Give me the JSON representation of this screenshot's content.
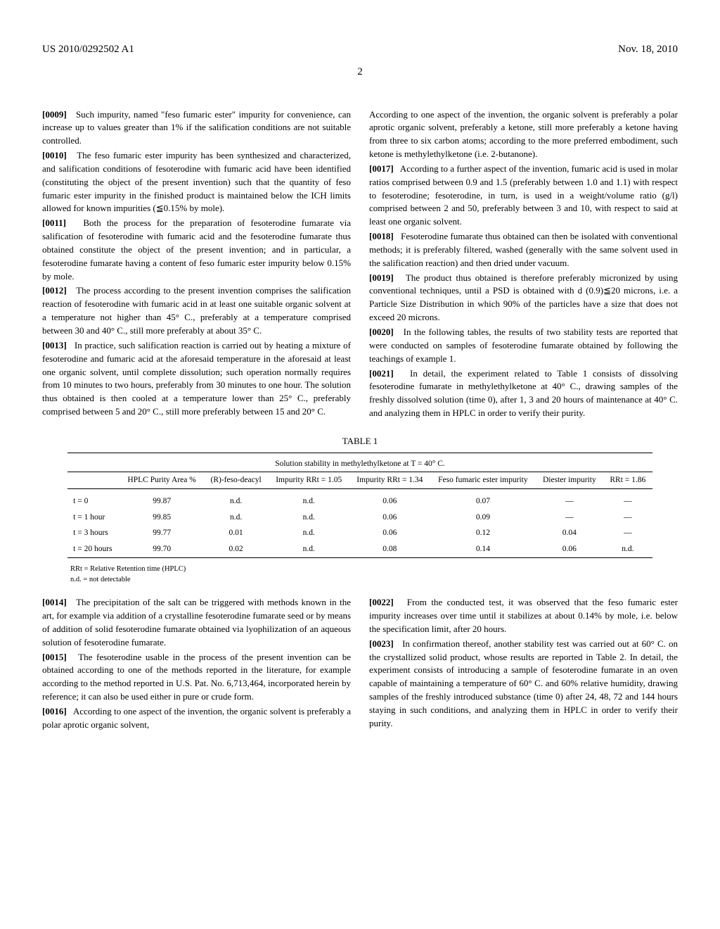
{
  "header": {
    "left": "US 2010/0292502 A1",
    "right": "Nov. 18, 2010",
    "page_number": "2"
  },
  "paragraphs": {
    "p0009": "Such impurity, named \"feso fumaric ester\" impurity for convenience, can increase up to values greater than 1% if the salification conditions are not suitable controlled.",
    "p0010": "The feso fumaric ester impurity has been synthesized and characterized, and salification conditions of fesoterodine with fumaric acid have been identified (constituting the object of the present invention) such that the quantity of feso fumaric ester impurity in the finished product is maintained below the ICH limits allowed for known impurities (≦0.15% by mole).",
    "p0011": "Both the process for the preparation of fesoterodine fumarate via salification of fesoterodine with fumaric acid and the fesoterodine fumarate thus obtained constitute the object of the present invention; and in particular, a fesoterodine fumarate having a content of feso fumaric ester impurity below 0.15% by mole.",
    "p0012": "The process according to the present invention comprises the salification reaction of fesoterodine with fumaric acid in at least one suitable organic solvent at a temperature not higher than 45° C., preferably at a temperature comprised between 30 and 40° C., still more preferably at about 35° C.",
    "p0013": "In practice, such salification reaction is carried out by heating a mixture of fesoterodine and fumaric acid at the aforesaid temperature in the aforesaid at least one organic solvent, until complete dissolution; such operation normally requires from 10 minutes to two hours, preferably from 30 minutes to one hour. The solution thus obtained is then cooled at a temperature lower than 25° C., preferably comprised between 5 and 20° C., still more preferably between 15 and 20° C.",
    "p0014": "The precipitation of the salt can be triggered with methods known in the art, for example via addition of a crystalline fesoterodine fumarate seed or by means of addition of solid fesoterodine fumarate obtained via lyophilization of an aqueous solution of fesoterodine fumarate.",
    "p0015": "The fesoterodine usable in the process of the present invention can be obtained according to one of the methods reported in the literature, for example according to the method reported in U.S. Pat. No. 6,713,464, incorporated herein by reference; it can also be used either in pure or crude form.",
    "p0016": "According to one aspect of the invention, the organic solvent is preferably a polar aprotic organic solvent, preferably a ketone, still more preferably a ketone having from three to six carbon atoms; according to the more preferred embodiment, such ketone is methylethylketone (i.e. 2-butanone).",
    "p0017": "According to a further aspect of the invention, fumaric acid is used in molar ratios comprised between 0.9 and 1.5 (preferably between 1.0 and 1.1) with respect to fesoterodine; fesoterodine, in turn, is used in a weight/volume ratio (g/l) comprised between 2 and 50, preferably between 3 and 10, with respect to said at least one organic solvent.",
    "p0018": "Fesoterodine fumarate thus obtained can then be isolated with conventional methods; it is preferably filtered, washed (generally with the same solvent used in the salification reaction) and then dried under vacuum.",
    "p0019": "The product thus obtained is therefore preferably micronized by using conventional techniques, until a PSD is obtained with d (0.9)≦20 microns, i.e. a Particle Size Distribution in which 90% of the particles have a size that does not exceed 20 microns.",
    "p0020": "In the following tables, the results of two stability tests are reported that were conducted on samples of fesoterodine fumarate obtained by following the teachings of example 1.",
    "p0021": "In detail, the experiment related to Table 1 consists of dissolving fesoterodine fumarate in methylethylketone at 40° C., drawing samples of the freshly dissolved solution (time 0), after 1, 3 and 20 hours of maintenance at 40° C. and analyzing them in HPLC in order to verify their purity.",
    "p0022": "From the conducted test, it was observed that the feso fumaric ester impurity increases over time until it stabilizes at about 0.14% by mole, i.e. below the specification limit, after 20 hours.",
    "p0023": "In confirmation thereof, another stability test was carried out at 60° C. on the crystallized solid product, whose results are reported in Table 2. In detail, the experiment consists of introducing a sample of fesoterodine fumarate in an oven capable of maintaining a temperature of 60° C. and 60% relative humidity, drawing samples of the freshly introduced substance (time 0) after 24, 48, 72 and 144 hours staying in such conditions, and analyzing them in HPLC in order to verify their purity."
  },
  "labels": {
    "p0009": "[0009]",
    "p0010": "[0010]",
    "p0011": "[0011]",
    "p0012": "[0012]",
    "p0013": "[0013]",
    "p0014": "[0014]",
    "p0015": "[0015]",
    "p0016": "[0016]",
    "p0017": "[0017]",
    "p0018": "[0018]",
    "p0019": "[0019]",
    "p0020": "[0020]",
    "p0021": "[0021]",
    "p0022": "[0022]",
    "p0023": "[0023]"
  },
  "table1": {
    "caption": "TABLE 1",
    "title": "Solution stability in methylethylketone at T = 40° C.",
    "columns": [
      "",
      "HPLC Purity Area %",
      "(R)-feso-deacyl",
      "Impurity RRt = 1.05",
      "Impurity RRt = 1.34",
      "Feso fumaric ester impurity",
      "Diester impurity",
      "RRt = 1.86"
    ],
    "rows": [
      [
        "t = 0",
        "99.87",
        "n.d.",
        "n.d.",
        "0.06",
        "0.07",
        "—",
        "—"
      ],
      [
        "t = 1 hour",
        "99.85",
        "n.d.",
        "n.d.",
        "0.06",
        "0.09",
        "—",
        "—"
      ],
      [
        "t = 3 hours",
        "99.77",
        "0.01",
        "n.d.",
        "0.06",
        "0.12",
        "0.04",
        "—"
      ],
      [
        "t = 20 hours",
        "99.70",
        "0.02",
        "n.d.",
        "0.08",
        "0.14",
        "0.06",
        "n.d."
      ]
    ],
    "footnotes": [
      "RRt = Relative Retention time (HPLC)",
      "n.d. = not detectable"
    ]
  }
}
